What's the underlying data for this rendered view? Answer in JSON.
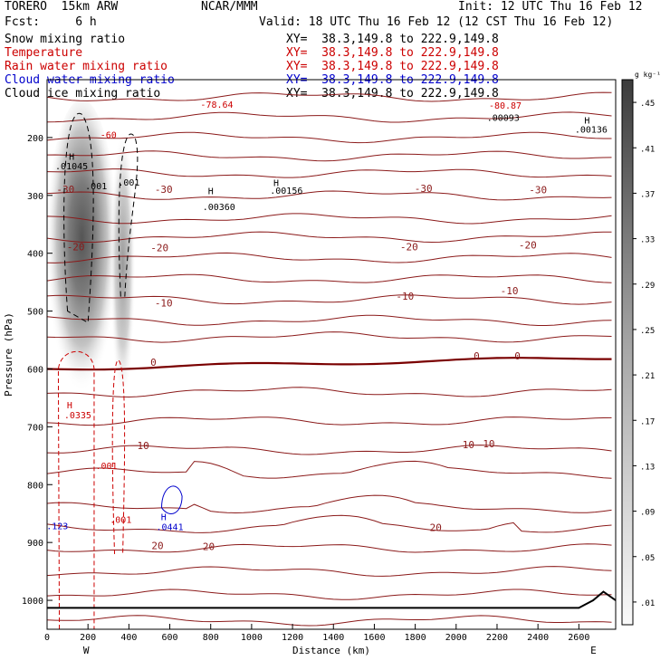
{
  "header": {
    "model": "TORERO  15km ARW",
    "org": "NCAR/MMM",
    "init": "Init: 12 UTC Thu 16 Feb 12",
    "fcst": "Fcst:     6 h",
    "valid": "Valid: 18 UTC Thu 16 Feb 12 (12 CST Thu 16 Feb 12)"
  },
  "fields": [
    {
      "name": "Snow mixing ratio",
      "xy": "XY=  38.3,149.8 to 222.9,149.8",
      "color": "#000000"
    },
    {
      "name": "Temperature",
      "xy": "XY=  38.3,149.8 to 222.9,149.8",
      "color": "#cc0000"
    },
    {
      "name": "Rain water mixing ratio",
      "xy": "XY=  38.3,149.8 to 222.9,149.8",
      "color": "#cc0000"
    },
    {
      "name": "Cloud water mixing ratio",
      "xy": "XY=  38.3,149.8 to 222.9,149.8",
      "color": "#0000cc"
    },
    {
      "name": "Cloud ice mixing ratio",
      "xy": "XY=  38.3,149.8 to 222.9,149.8",
      "color": "#000000"
    }
  ],
  "chart_data": {
    "type": "cross-section",
    "xlabel": "Distance (km)",
    "ylabel": "Pressure (hPa)",
    "xlim": [
      0,
      2780
    ],
    "ylim": [
      1050,
      100
    ],
    "x_ticks": [
      0,
      200,
      400,
      600,
      800,
      1000,
      1200,
      1400,
      1600,
      1800,
      2000,
      2200,
      2400,
      2600
    ],
    "y_ticks": [
      200,
      300,
      400,
      500,
      600,
      700,
      800,
      900,
      1000
    ],
    "end_labels": {
      "west": "W",
      "east": "E"
    },
    "colorbar": {
      "unit": "g kg⁻¹",
      "ticks": [
        ".01",
        ".05",
        ".09",
        ".13",
        ".17",
        ".21",
        ".25",
        ".29",
        ".33",
        ".37",
        ".41",
        ".45"
      ]
    },
    "temperature_contours": [
      {
        "label": "-30",
        "labels_at": [
          [
            90,
            289
          ],
          [
            570,
            289
          ],
          [
            1840,
            288
          ],
          [
            2400,
            290
          ]
        ]
      },
      {
        "label": "-20",
        "labels_at": [
          [
            140,
            389
          ],
          [
            550,
            390
          ],
          [
            1770,
            389
          ],
          [
            2350,
            386
          ]
        ]
      },
      {
        "label": "-10",
        "labels_at": [
          [
            570,
            486
          ],
          [
            1750,
            474
          ],
          [
            2260,
            465
          ]
        ]
      },
      {
        "label": "0",
        "labels_at": [
          [
            520,
            588
          ],
          [
            2100,
            577
          ],
          [
            2300,
            577
          ]
        ]
      },
      {
        "label": "10",
        "labels_at": [
          [
            470,
            732
          ],
          [
            2060,
            731
          ],
          [
            2160,
            729
          ]
        ]
      },
      {
        "label": "20",
        "labels_at": [
          [
            540,
            905
          ],
          [
            790,
            907
          ],
          [
            1900,
            874
          ]
        ]
      }
    ],
    "annotations": [
      {
        "text": "-78.64",
        "x": 830,
        "p": 142,
        "color": "#cc0000"
      },
      {
        "text": "-60",
        "x": 300,
        "p": 195,
        "color": "#cc0000"
      },
      {
        "text": "H",
        "x": 120,
        "p": 232,
        "color": "#000000"
      },
      {
        "text": ".01045",
        "x": 120,
        "p": 249,
        "color": "#000000"
      },
      {
        "text": ".001",
        "x": 240,
        "p": 283,
        "color": "#000000"
      },
      {
        "text": ".001",
        "x": 400,
        "p": 277,
        "color": "#000000"
      },
      {
        "text": "H",
        "x": 800,
        "p": 292,
        "color": "#000000"
      },
      {
        "text": ".00360",
        "x": 840,
        "p": 319,
        "color": "#000000"
      },
      {
        "text": "H",
        "x": 1120,
        "p": 278,
        "color": "#000000"
      },
      {
        "text": ".00156",
        "x": 1170,
        "p": 291,
        "color": "#000000"
      },
      {
        "text": "H",
        "x": 2640,
        "p": 170,
        "color": "#000000"
      },
      {
        "text": ".00136",
        "x": 2660,
        "p": 185,
        "color": "#000000"
      },
      {
        "text": ".00093",
        "x": 2230,
        "p": 165,
        "color": "#000000"
      },
      {
        "text": "-80.87",
        "x": 2240,
        "p": 144,
        "color": "#cc0000"
      },
      {
        "text": "H",
        "x": 110,
        "p": 662,
        "color": "#cc0000"
      },
      {
        "text": ".0335",
        "x": 150,
        "p": 679,
        "color": "#cc0000"
      },
      {
        "text": ".001",
        "x": 290,
        "p": 767,
        "color": "#cc0000"
      },
      {
        "text": ".001",
        "x": 360,
        "p": 860,
        "color": "#cc0000"
      },
      {
        "text": ".123",
        "x": 50,
        "p": 871,
        "color": "#0000cc"
      },
      {
        "text": "H",
        "x": 570,
        "p": 855,
        "color": "#0000cc"
      },
      {
        "text": ".0441",
        "x": 600,
        "p": 872,
        "color": "#0000cc"
      }
    ]
  }
}
